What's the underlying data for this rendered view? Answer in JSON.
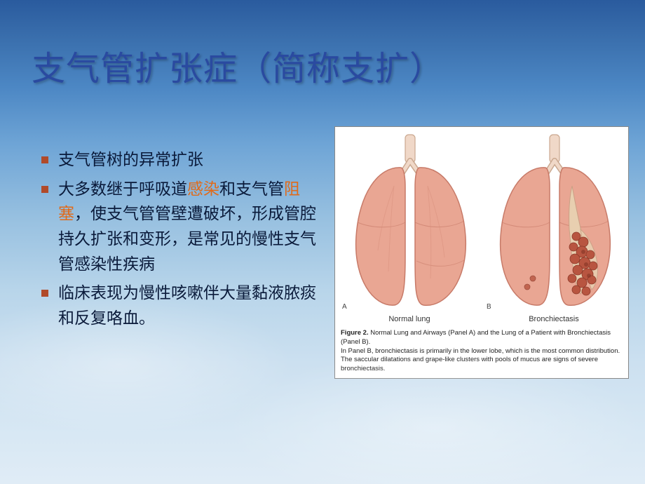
{
  "title": "支气管扩张症（简称支扩）",
  "title_color": "#2a4aa0",
  "title_fontsize": 48,
  "bullet_marker_color": "#b04a2a",
  "highlight_color": "#e06a1a",
  "body_text_color": "#0a1a3a",
  "body_fontsize": 23,
  "bullets": [
    {
      "html": "支气管树的异常扩张"
    },
    {
      "html": "大多数继于呼吸道<span class=\"hl\">感染</span>和支气管<span class=\"hl\">阻塞</span>，使支气管管壁遭破坏，形成管腔持久扩张和变形，是常见的慢性支气管感染性疾病"
    },
    {
      "html": "临床表现为慢性咳嗽伴大量黏液脓痰和反复咯血。"
    }
  ],
  "figure": {
    "background": "#ffffff",
    "border_color": "#888888",
    "lung_fill": "#e9a693",
    "lung_stroke": "#c77a68",
    "airway_fill": "#f0d8c8",
    "airway_stroke": "#caa890",
    "lesion_fill": "#b85540",
    "lesion_stroke": "#8c3a2a",
    "label_fontsize": 11,
    "caption_fontsize": 9.5,
    "panel_a": {
      "corner": "A",
      "label": "Normal lung"
    },
    "panel_b": {
      "corner": "B",
      "label": "Bronchiectasis"
    },
    "caption_bold": "Figure 2.",
    "caption_line1": " Normal Lung and Airways (Panel A) and the Lung of a Patient with Bronchiectasis (Panel B).",
    "caption_line2": "In Panel B, bronchiectasis is primarily in the lower lobe, which is the most common distribution. The saccular dilatations and grape-like clusters with pools of mucus are signs of severe bronchiectasis."
  },
  "background_gradient": [
    "#2a5b9e",
    "#3a6fad",
    "#4c87c4",
    "#6fa5d6",
    "#97c0e0",
    "#b8d5ea",
    "#cce0f0",
    "#d8e8f4",
    "#e0ecf6"
  ]
}
